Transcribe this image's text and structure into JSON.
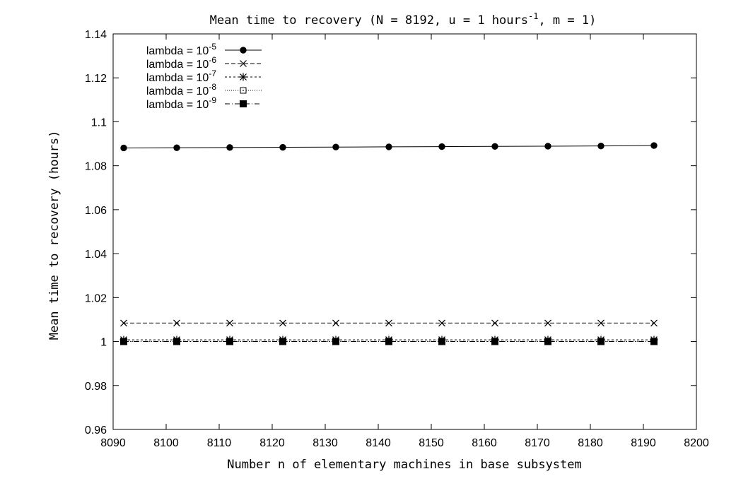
{
  "chart_data": {
    "type": "line",
    "title": {
      "prefix": "Mean time to recovery (N = 8192, u = 1 hours",
      "sup": "-1",
      "suffix": ", m = 1)"
    },
    "xlabel": "Number n of elementary machines in base subsystem",
    "ylabel": "Mean time to recovery (hours)",
    "xlim": [
      8090,
      8200
    ],
    "ylim": [
      0.96,
      1.14
    ],
    "xticks": [
      8090,
      8100,
      8110,
      8120,
      8130,
      8140,
      8150,
      8160,
      8170,
      8180,
      8190,
      8200
    ],
    "yticks": [
      0.96,
      0.98,
      1,
      1.02,
      1.04,
      1.06,
      1.08,
      1.1,
      1.12,
      1.14
    ],
    "xtick_labels": [
      "8090",
      "8100",
      "8110",
      "8120",
      "8130",
      "8140",
      "8150",
      "8160",
      "8170",
      "8180",
      "8190",
      "8200"
    ],
    "ytick_labels": [
      "0.96",
      "0.98",
      "1",
      "1.02",
      "1.04",
      "1.06",
      "1.08",
      "1.1",
      "1.12",
      "1.14"
    ],
    "grid": false,
    "legend_position": "top-left",
    "x": [
      8092,
      8102,
      8112,
      8122,
      8132,
      8142,
      8152,
      8162,
      8172,
      8182,
      8192
    ],
    "series": [
      {
        "name": "lambda = 10",
        "name_sup": "-5",
        "marker": "filled-circle",
        "dash": "solid",
        "values": [
          1.0881,
          1.0882,
          1.0883,
          1.0884,
          1.0885,
          1.0886,
          1.0887,
          1.0888,
          1.0889,
          1.089,
          1.0892
        ]
      },
      {
        "name": "lambda = 10",
        "name_sup": "-6",
        "marker": "cross",
        "dash": "dashed",
        "values": [
          1.0084,
          1.0084,
          1.0084,
          1.0084,
          1.0084,
          1.0084,
          1.0084,
          1.0084,
          1.0084,
          1.0084,
          1.0084
        ]
      },
      {
        "name": "lambda = 10",
        "name_sup": "-7",
        "marker": "asterisk",
        "dash": "short-dash",
        "values": [
          1.0008,
          1.0008,
          1.0008,
          1.0008,
          1.0008,
          1.0008,
          1.0008,
          1.0008,
          1.0008,
          1.0008,
          1.0008
        ]
      },
      {
        "name": "lambda = 10",
        "name_sup": "-8",
        "marker": "open-square",
        "dash": "dotted",
        "values": [
          1.0001,
          1.0001,
          1.0001,
          1.0001,
          1.0001,
          1.0001,
          1.0001,
          1.0001,
          1.0001,
          1.0001,
          1.0001
        ]
      },
      {
        "name": "lambda = 10",
        "name_sup": "-9",
        "marker": "filled-square",
        "dash": "dash-dot",
        "values": [
          1.0,
          1.0,
          1.0,
          1.0,
          1.0,
          1.0,
          1.0,
          1.0,
          1.0,
          1.0,
          1.0
        ]
      }
    ]
  }
}
